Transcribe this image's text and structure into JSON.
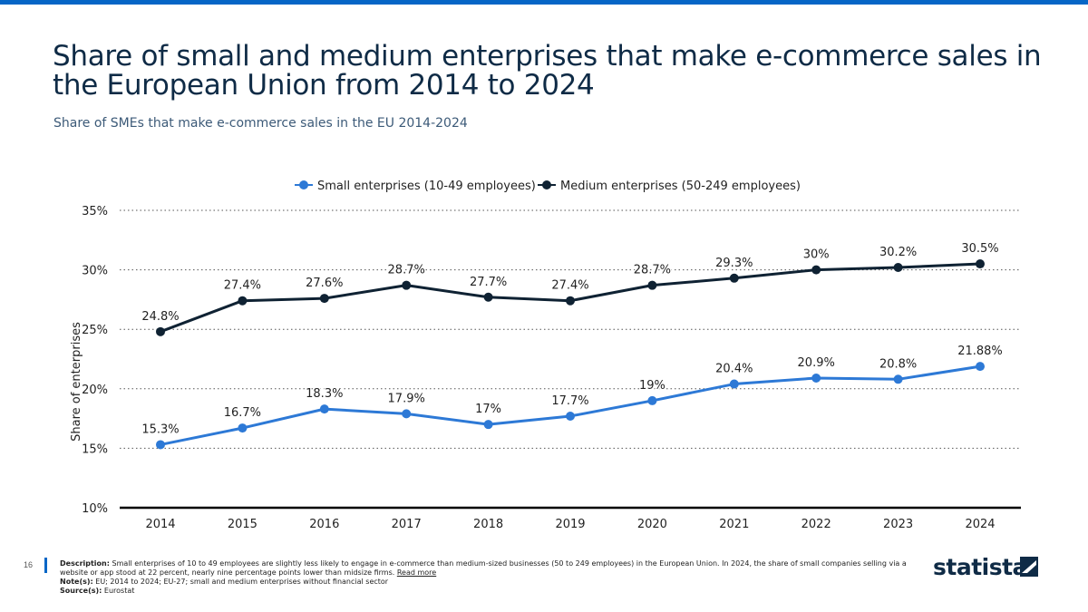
{
  "page": {
    "title": "Share of small and medium enterprises that make e-commerce sales in the European Union from 2014 to 2024",
    "subtitle": "Share of SMEs that make e-commerce sales in the EU 2014-2024",
    "page_number": "16",
    "brand": "statista"
  },
  "footer": {
    "description_label": "Description:",
    "description_text": "Small enterprises of 10 to 49 employees are slightly less likely to engage in e-commerce than medium-sized businesses (50 to 249 employees) in the European Union. In 2024, the share of small companies selling via a website or app stood at 22 percent, nearly nine percentage points lower than midsize firms.",
    "read_more": "Read more",
    "note_label": "Note(s):",
    "note_text": "EU; 2014 to 2024; EU-27; small and medium enterprises without financial sector",
    "source_label": "Source(s):",
    "source_text": "Eurostat"
  },
  "colors": {
    "accent": "#0666c6",
    "small_series": "#2d79d6",
    "medium_series": "#0f2233",
    "title": "#0f2b46"
  },
  "chart_data": {
    "type": "line",
    "title": "",
    "xlabel": "",
    "ylabel": "Share of enterprises",
    "ylim": [
      10,
      35
    ],
    "yticks": [
      10,
      15,
      20,
      25,
      30,
      35
    ],
    "ytick_labels": [
      "10%",
      "15%",
      "20%",
      "25%",
      "30%",
      "35%"
    ],
    "grid": true,
    "legend_position": "top-center",
    "categories": [
      "2014",
      "2015",
      "2016",
      "2017",
      "2018",
      "2019",
      "2020",
      "2021",
      "2022",
      "2023",
      "2024"
    ],
    "series": [
      {
        "name": "Small enterprises (10-49 employees)",
        "color": "#2d79d6",
        "values": [
          15.3,
          16.7,
          18.3,
          17.9,
          17,
          17.7,
          19,
          20.4,
          20.9,
          20.8,
          21.88
        ],
        "labels": [
          "15.3%",
          "16.7%",
          "18.3%",
          "17.9%",
          "17%",
          "17.7%",
          "19%",
          "20.4%",
          "20.9%",
          "20.8%",
          "21.88%"
        ]
      },
      {
        "name": "Medium enterprises (50-249 employees)",
        "color": "#0f2233",
        "values": [
          24.8,
          27.4,
          27.6,
          28.7,
          27.7,
          27.4,
          28.7,
          29.3,
          30,
          30.2,
          30.5
        ],
        "labels": [
          "24.8%",
          "27.4%",
          "27.6%",
          "28.7%",
          "27.7%",
          "27.4%",
          "28.7%",
          "29.3%",
          "30%",
          "30.2%",
          "30.5%"
        ]
      }
    ]
  }
}
